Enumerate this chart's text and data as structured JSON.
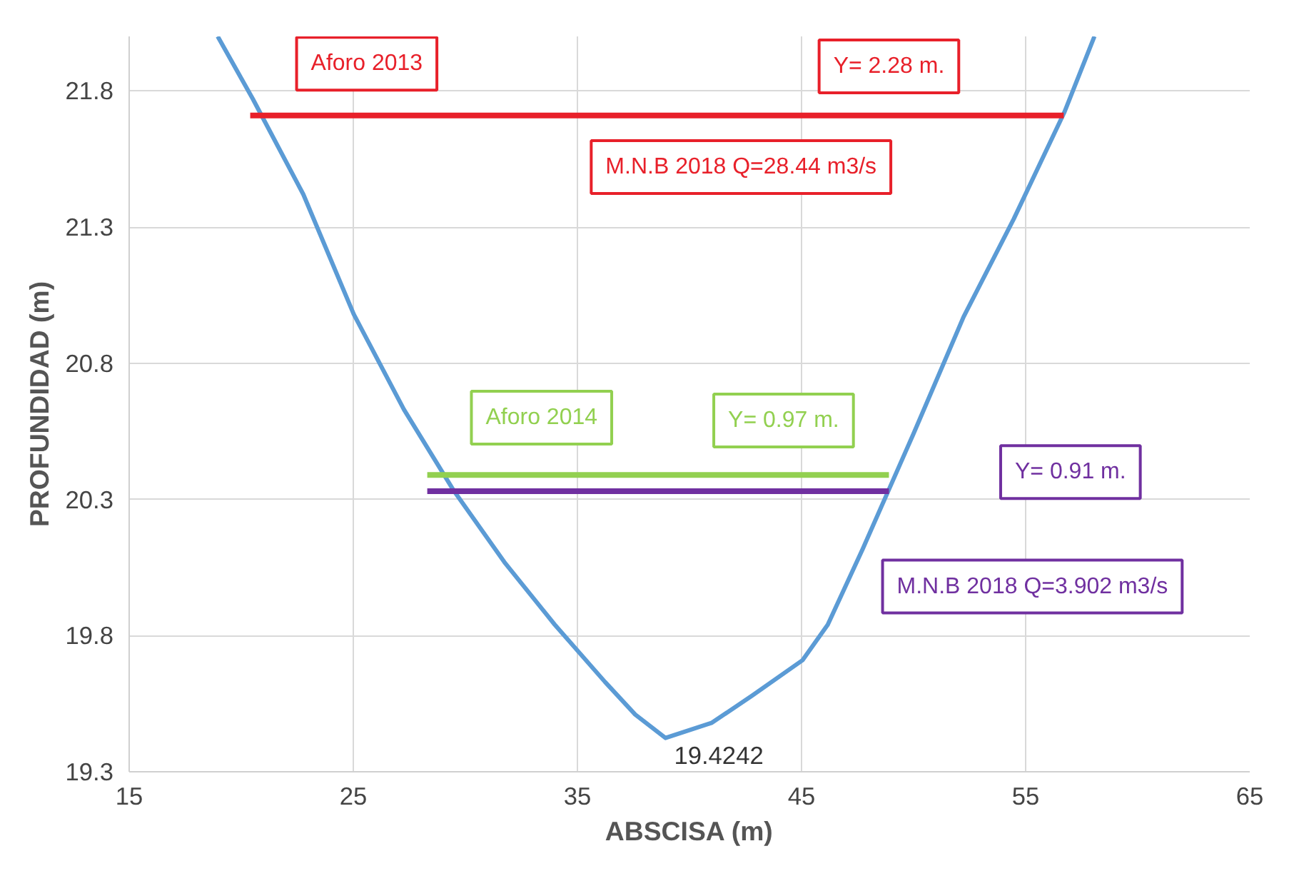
{
  "chart_data": {
    "type": "line",
    "xlabel": "ABSCISA (m)",
    "ylabel": "PROFUNDIDAD (m)",
    "xlim": [
      15,
      65
    ],
    "xticks": [
      15,
      25,
      35,
      45,
      55,
      65
    ],
    "ylim": [
      19.3,
      22.0
    ],
    "yticks": [
      19.3,
      19.8,
      20.3,
      20.8,
      21.3,
      21.8
    ],
    "grid": true,
    "marker": "none",
    "line_style": "solid",
    "series": [
      {
        "color": "#5b9bd5",
        "x": [
          18.95,
          20.52,
          22.77,
          25.02,
          27.26,
          29.5,
          31.74,
          33.99,
          36.23,
          37.58,
          38.93,
          41.0,
          42.8,
          45.05,
          46.17,
          47.74,
          49.99,
          52.23,
          54.47,
          56.72,
          58.07
        ],
        "values": [
          22.0,
          21.77,
          21.42,
          20.98,
          20.63,
          20.33,
          20.07,
          19.84,
          19.63,
          19.51,
          19.4242,
          19.48,
          19.58,
          19.71,
          19.84,
          20.12,
          20.54,
          20.97,
          21.33,
          21.72,
          22.0
        ],
        "value_labels": [
          null,
          null,
          null,
          null,
          null,
          null,
          null,
          null,
          null,
          null,
          "19.4242",
          null,
          null,
          null,
          null,
          null,
          null,
          null,
          null,
          null,
          null
        ]
      },
      {
        "color": "#e8202a",
        "x": [
          20.4,
          56.7
        ],
        "values": [
          21.71,
          21.71
        ]
      },
      {
        "color": "#92d050",
        "x": [
          28.3,
          48.9
        ],
        "values": [
          20.39,
          20.39
        ]
      },
      {
        "color": "#7030a0",
        "x": [
          28.3,
          48.9
        ],
        "values": [
          20.33,
          20.33
        ]
      }
    ],
    "annotations": [
      "Aforo 2013",
      "Y= 2.28 m.",
      "M.N.B 2018 Q=28.44 m3/s",
      "Aforo 2014",
      "Y= 0.97 m.",
      "Y= 0.91 m.",
      "M.N.B 2018 Q=3.902 m3/s"
    ]
  }
}
